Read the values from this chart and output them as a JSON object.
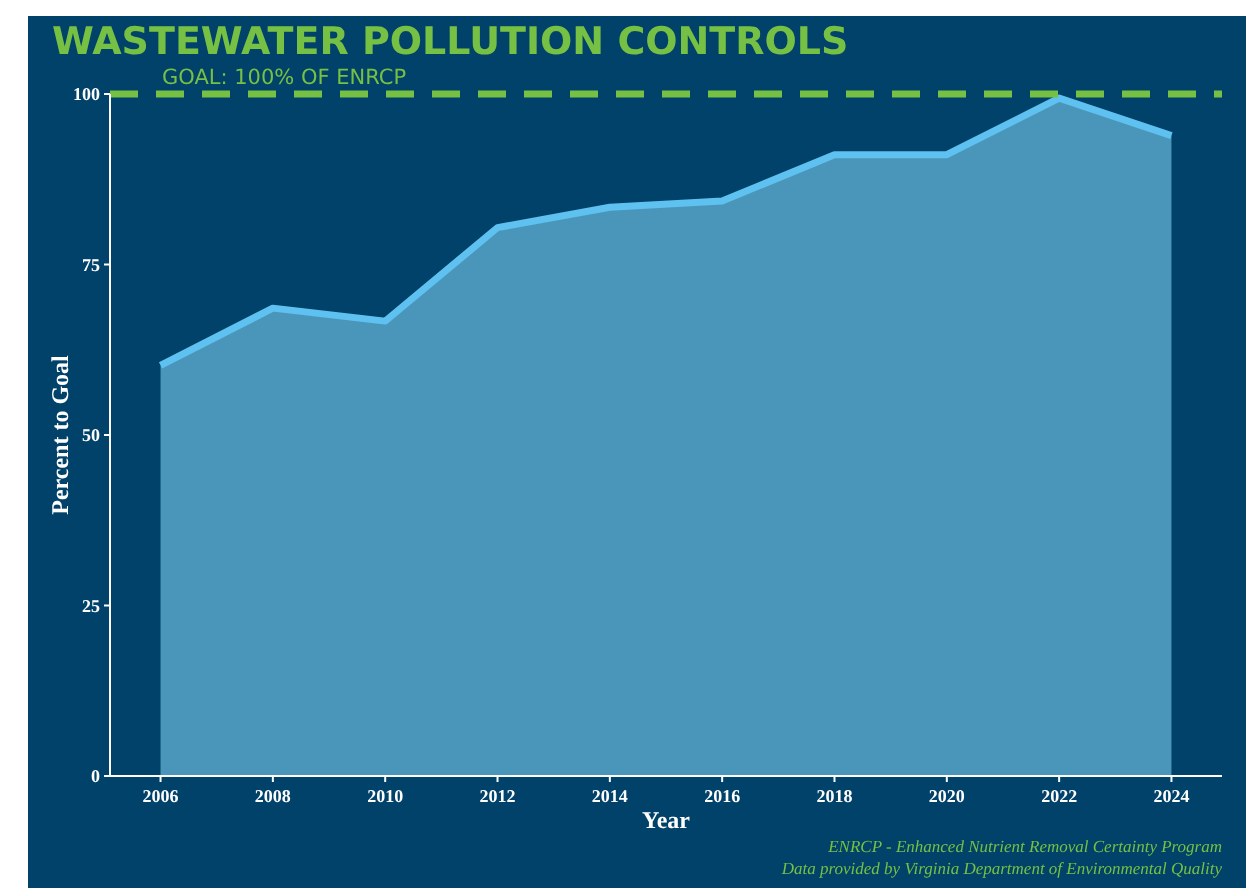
{
  "chart_data": {
    "type": "area",
    "title": "WASTEWATER POLLUTION CONTROLS",
    "xlabel": "Year",
    "ylabel": "Percent to Goal",
    "x": [
      2006,
      2008,
      2010,
      2012,
      2014,
      2016,
      2018,
      2020,
      2022,
      2024
    ],
    "series": [
      {
        "color": "#4a96bb",
        "values": [
          60.2,
          68.6,
          66.7,
          80.4,
          83.4,
          84.3,
          91.1,
          91.1,
          99.4,
          93.9
        ]
      }
    ],
    "xlim": [
      2005.1,
      2024.9
    ],
    "xticks": [
      2006,
      2008,
      2010,
      2012,
      2014,
      2016,
      2018,
      2020,
      2022,
      2024
    ],
    "ylim": [
      0,
      100
    ],
    "yticks": [
      0,
      25,
      50,
      75,
      100
    ],
    "grid": false,
    "ref_lines": [
      {
        "axis": "y",
        "value": 100,
        "label": "GOAL: 100% OF ENRCP",
        "color": "#76c043",
        "line_style": "dashed"
      }
    ],
    "annotations": [
      "ENRCP - Enhanced Nutrient Removal Certainty Program",
      "Data provided by Virginia Department of Environmental Quality"
    ]
  }
}
